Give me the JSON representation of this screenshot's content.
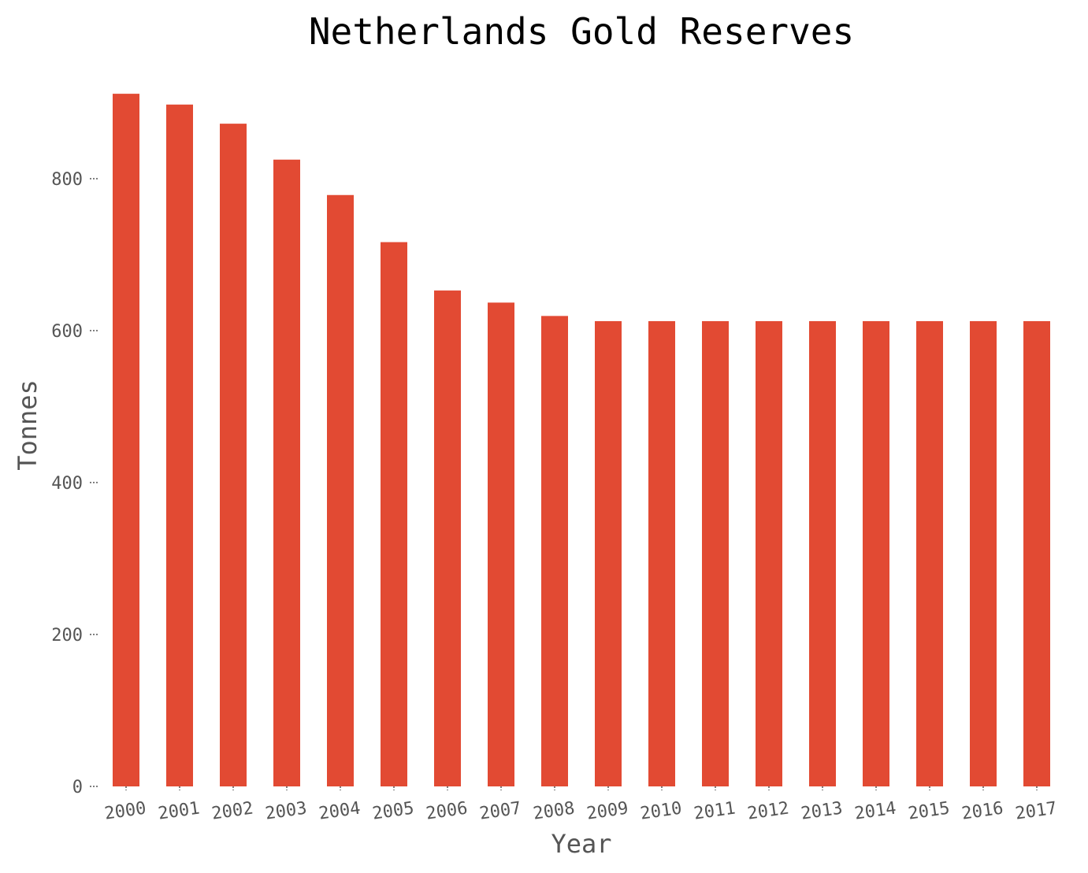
{
  "chart_data": {
    "type": "bar",
    "title": "Netherlands Gold Reserves",
    "xlabel": "Year",
    "ylabel": "Tonnes",
    "categories": [
      "2000",
      "2001",
      "2002",
      "2003",
      "2004",
      "2005",
      "2006",
      "2007",
      "2008",
      "2009",
      "2010",
      "2011",
      "2012",
      "2013",
      "2014",
      "2015",
      "2016",
      "2017"
    ],
    "values": [
      911.8,
      897.6,
      872.4,
      825.1,
      778.5,
      716.5,
      652.8,
      636.9,
      619.3,
      612.5,
      612.5,
      612.5,
      612.5,
      612.5,
      612.5,
      612.5,
      612.5,
      612.5
    ],
    "yticks": [
      0,
      200,
      400,
      600,
      800
    ],
    "ylim": [
      0,
      950
    ],
    "grid": false,
    "legend": "none",
    "bar_color": "#e24a33"
  }
}
